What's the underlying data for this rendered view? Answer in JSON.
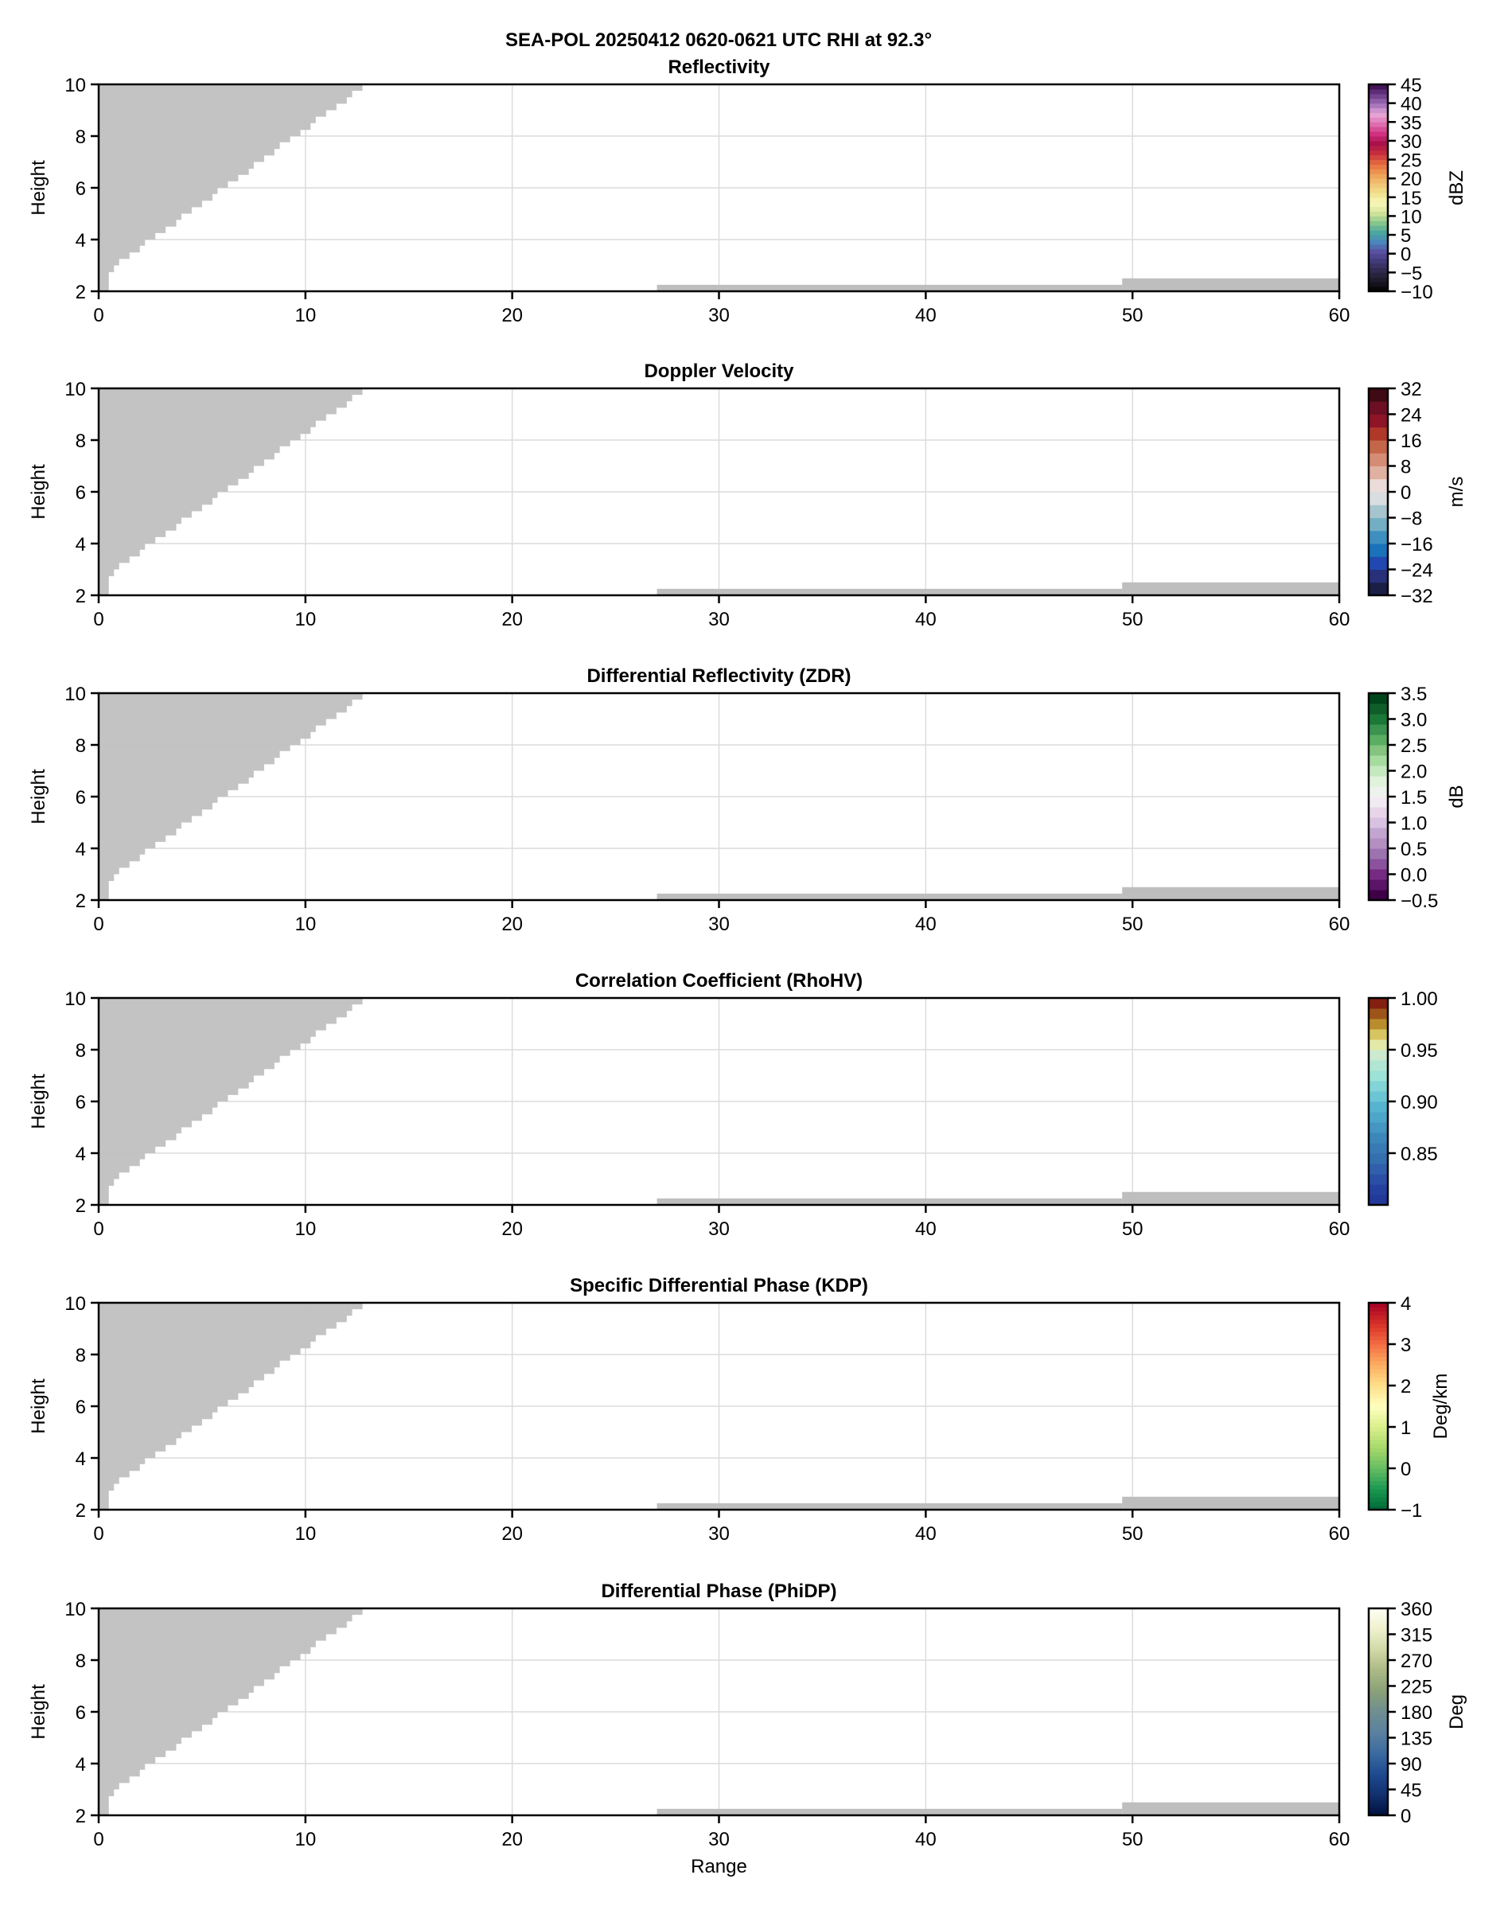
{
  "chart_data": [
    {
      "type": "heatmap",
      "suptitle": "SEA-POL 20250412 0620-0621 UTC RHI at 92.3°",
      "title": "Reflectivity",
      "xlabel": "",
      "ylabel": "Height",
      "xlim": [
        0,
        60
      ],
      "ylim": [
        2,
        10
      ],
      "xticks": [
        0,
        10,
        20,
        30,
        40,
        50,
        60
      ],
      "yticks": [
        2,
        4,
        6,
        8,
        10
      ],
      "grid": true,
      "colorbar": {
        "label": "dBZ",
        "vmin": -10,
        "vmax": 45,
        "ticks": [
          -10,
          -5,
          0,
          5,
          10,
          15,
          20,
          25,
          30,
          35,
          40,
          45
        ],
        "tick_labels": [
          "−10",
          "−5",
          "0",
          "5",
          "10",
          "15",
          "20",
          "25",
          "30",
          "35",
          "40",
          "45"
        ],
        "bins": 44,
        "colors": [
          "#000000",
          "#1c1826",
          "#2e2848",
          "#3f3a78",
          "#5a4fa0",
          "#4a86bc",
          "#4ba79e",
          "#8ac78c",
          "#d6e69a",
          "#f8f8b8",
          "#f2e08c",
          "#f0c070",
          "#ef9a52",
          "#e46840",
          "#c8303e",
          "#a8104a",
          "#d03080",
          "#e070b0",
          "#e8a8d8",
          "#a070b8",
          "#6a3a88",
          "#3a0a48"
        ]
      }
    },
    {
      "type": "heatmap",
      "title": "Doppler Velocity",
      "xlabel": "",
      "ylabel": "Height",
      "xlim": [
        0,
        60
      ],
      "ylim": [
        2,
        10
      ],
      "xticks": [
        0,
        10,
        20,
        30,
        40,
        50,
        60
      ],
      "yticks": [
        2,
        4,
        6,
        8,
        10
      ],
      "grid": true,
      "colorbar": {
        "label": "m/s",
        "vmin": -32,
        "vmax": 32,
        "ticks": [
          -32,
          -24,
          -16,
          -8,
          0,
          8,
          16,
          24,
          32
        ],
        "tick_labels": [
          "−32",
          "−24",
          "−16",
          "−8",
          "0",
          "8",
          "16",
          "24",
          "32"
        ],
        "bins": 16,
        "colors": [
          "#1b1e45",
          "#28307a",
          "#2148b0",
          "#1a72bb",
          "#3e8fbf",
          "#73aec4",
          "#a6c4cd",
          "#d9dde0",
          "#ecdcd9",
          "#e0b0a0",
          "#d68c74",
          "#c4664a",
          "#b03828",
          "#8e1428",
          "#6d0f24",
          "#3f0a14"
        ]
      }
    },
    {
      "type": "heatmap",
      "title": "Differential Reflectivity (ZDR)",
      "xlabel": "",
      "ylabel": "Height",
      "xlim": [
        0,
        60
      ],
      "ylim": [
        2,
        10
      ],
      "xticks": [
        0,
        10,
        20,
        30,
        40,
        50,
        60
      ],
      "yticks": [
        2,
        4,
        6,
        8,
        10
      ],
      "grid": true,
      "colorbar": {
        "label": "dB",
        "vmin": -0.5,
        "vmax": 3.5,
        "ticks": [
          -0.5,
          0.0,
          0.5,
          1.0,
          1.5,
          2.0,
          2.5,
          3.0,
          3.5
        ],
        "tick_labels": [
          "−0.5",
          "0.0",
          "0.5",
          "1.0",
          "1.5",
          "2.0",
          "2.5",
          "3.0",
          "3.5"
        ],
        "bins": 20,
        "colors": [
          "#3f0047",
          "#5c1468",
          "#762a82",
          "#8b529e",
          "#9c73ae",
          "#b38fc2",
          "#c2a5cf",
          "#d9c1e1",
          "#e7d4e8",
          "#f2eaf3",
          "#eef2ec",
          "#e0f2db",
          "#c5e8c0",
          "#a6dba0",
          "#84c47f",
          "#5aae61",
          "#3c9350",
          "#1b7837",
          "#0f5e2a",
          "#00441b"
        ]
      }
    },
    {
      "type": "heatmap",
      "title": "Correlation Coefficient (RhoHV)",
      "xlabel": "",
      "ylabel": "Height",
      "xlim": [
        0,
        60
      ],
      "ylim": [
        2,
        10
      ],
      "xticks": [
        0,
        10,
        20,
        30,
        40,
        50,
        60
      ],
      "yticks": [
        2,
        4,
        6,
        8,
        10
      ],
      "grid": true,
      "colorbar": {
        "label": "",
        "vmin": 0.8,
        "vmax": 1.0,
        "ticks": [
          0.85,
          0.9,
          0.95,
          1.0
        ],
        "tick_labels": [
          "0.85",
          "0.90",
          "0.95",
          "1.00"
        ],
        "bins": 20,
        "colors": [
          "#22399a",
          "#2541a0",
          "#2b4fa7",
          "#3060ab",
          "#3470b0",
          "#387ab4",
          "#3c87ba",
          "#4596c2",
          "#4ca6c9",
          "#56b4d1",
          "#6cc5d4",
          "#82d4d6",
          "#9de2d6",
          "#b2e6d4",
          "#cbead0",
          "#e3e9a8",
          "#d7c562",
          "#b98d2c",
          "#9d5418",
          "#842010"
        ]
      }
    },
    {
      "type": "heatmap",
      "title": "Specific Differential Phase (KDP)",
      "xlabel": "",
      "ylabel": "Height",
      "xlim": [
        0,
        60
      ],
      "ylim": [
        2,
        10
      ],
      "xticks": [
        0,
        10,
        20,
        30,
        40,
        50,
        60
      ],
      "yticks": [
        2,
        4,
        6,
        8,
        10
      ],
      "grid": true,
      "colorbar": {
        "label": "Deg/km",
        "vmin": -1,
        "vmax": 4,
        "ticks": [
          -1,
          0,
          1,
          2,
          3,
          4
        ],
        "tick_labels": [
          "−1",
          "0",
          "1",
          "2",
          "3",
          "4"
        ],
        "bins": 50,
        "colors": [
          "#006837",
          "#1a9850",
          "#66bd63",
          "#a6d96a",
          "#d9ef8b",
          "#ffffbf",
          "#fee08b",
          "#fdae61",
          "#f46d43",
          "#d73027",
          "#a50026"
        ]
      }
    },
    {
      "type": "heatmap",
      "title": "Differential Phase (PhiDP)",
      "xlabel": "Range",
      "ylabel": "Height",
      "xlim": [
        0,
        60
      ],
      "ylim": [
        2,
        10
      ],
      "xticks": [
        0,
        10,
        20,
        30,
        40,
        50,
        60
      ],
      "yticks": [
        2,
        4,
        6,
        8,
        10
      ],
      "grid": true,
      "colorbar": {
        "label": "Deg",
        "vmin": 0,
        "vmax": 360,
        "ticks": [
          0,
          45,
          90,
          135,
          180,
          225,
          270,
          315,
          360
        ],
        "tick_labels": [
          "0",
          "45",
          "90",
          "135",
          "180",
          "225",
          "270",
          "315",
          "360"
        ],
        "bins": 80,
        "colors": [
          "#00103e",
          "#12306e",
          "#1e4a90",
          "#3a6aa0",
          "#5a80a0",
          "#6e8e90",
          "#8aa078",
          "#aab884",
          "#d0d8a4",
          "#eef0cc",
          "#fffff5"
        ]
      }
    }
  ],
  "no_data_color": "#bebebe",
  "no_data_region": {
    "wedge_steps": [
      [
        0.49,
        2.74
      ],
      [
        0.74,
        3.0
      ],
      [
        0.99,
        3.25
      ],
      [
        1.49,
        3.5
      ],
      [
        1.99,
        3.76
      ],
      [
        2.24,
        4.0
      ],
      [
        2.74,
        4.25
      ],
      [
        3.24,
        4.5
      ],
      [
        3.75,
        4.76
      ],
      [
        4.0,
        5.0
      ],
      [
        4.5,
        5.25
      ],
      [
        5.0,
        5.5
      ],
      [
        5.5,
        5.76
      ],
      [
        5.75,
        6.0
      ],
      [
        6.25,
        6.25
      ],
      [
        6.75,
        6.5
      ],
      [
        7.26,
        6.74
      ],
      [
        7.5,
        7.0
      ],
      [
        8.0,
        7.25
      ],
      [
        8.5,
        7.5
      ],
      [
        8.76,
        7.76
      ],
      [
        9.26,
        8.0
      ],
      [
        9.76,
        8.24
      ],
      [
        10.25,
        8.5
      ],
      [
        10.5,
        8.75
      ],
      [
        11.0,
        9.0
      ],
      [
        11.5,
        9.25
      ],
      [
        12.0,
        9.5
      ],
      [
        12.26,
        9.75
      ],
      [
        12.76,
        10.0
      ]
    ],
    "surface_strips": [
      [
        27.0,
        49.5,
        2.25
      ],
      [
        49.5,
        60.0,
        2.5
      ]
    ]
  }
}
